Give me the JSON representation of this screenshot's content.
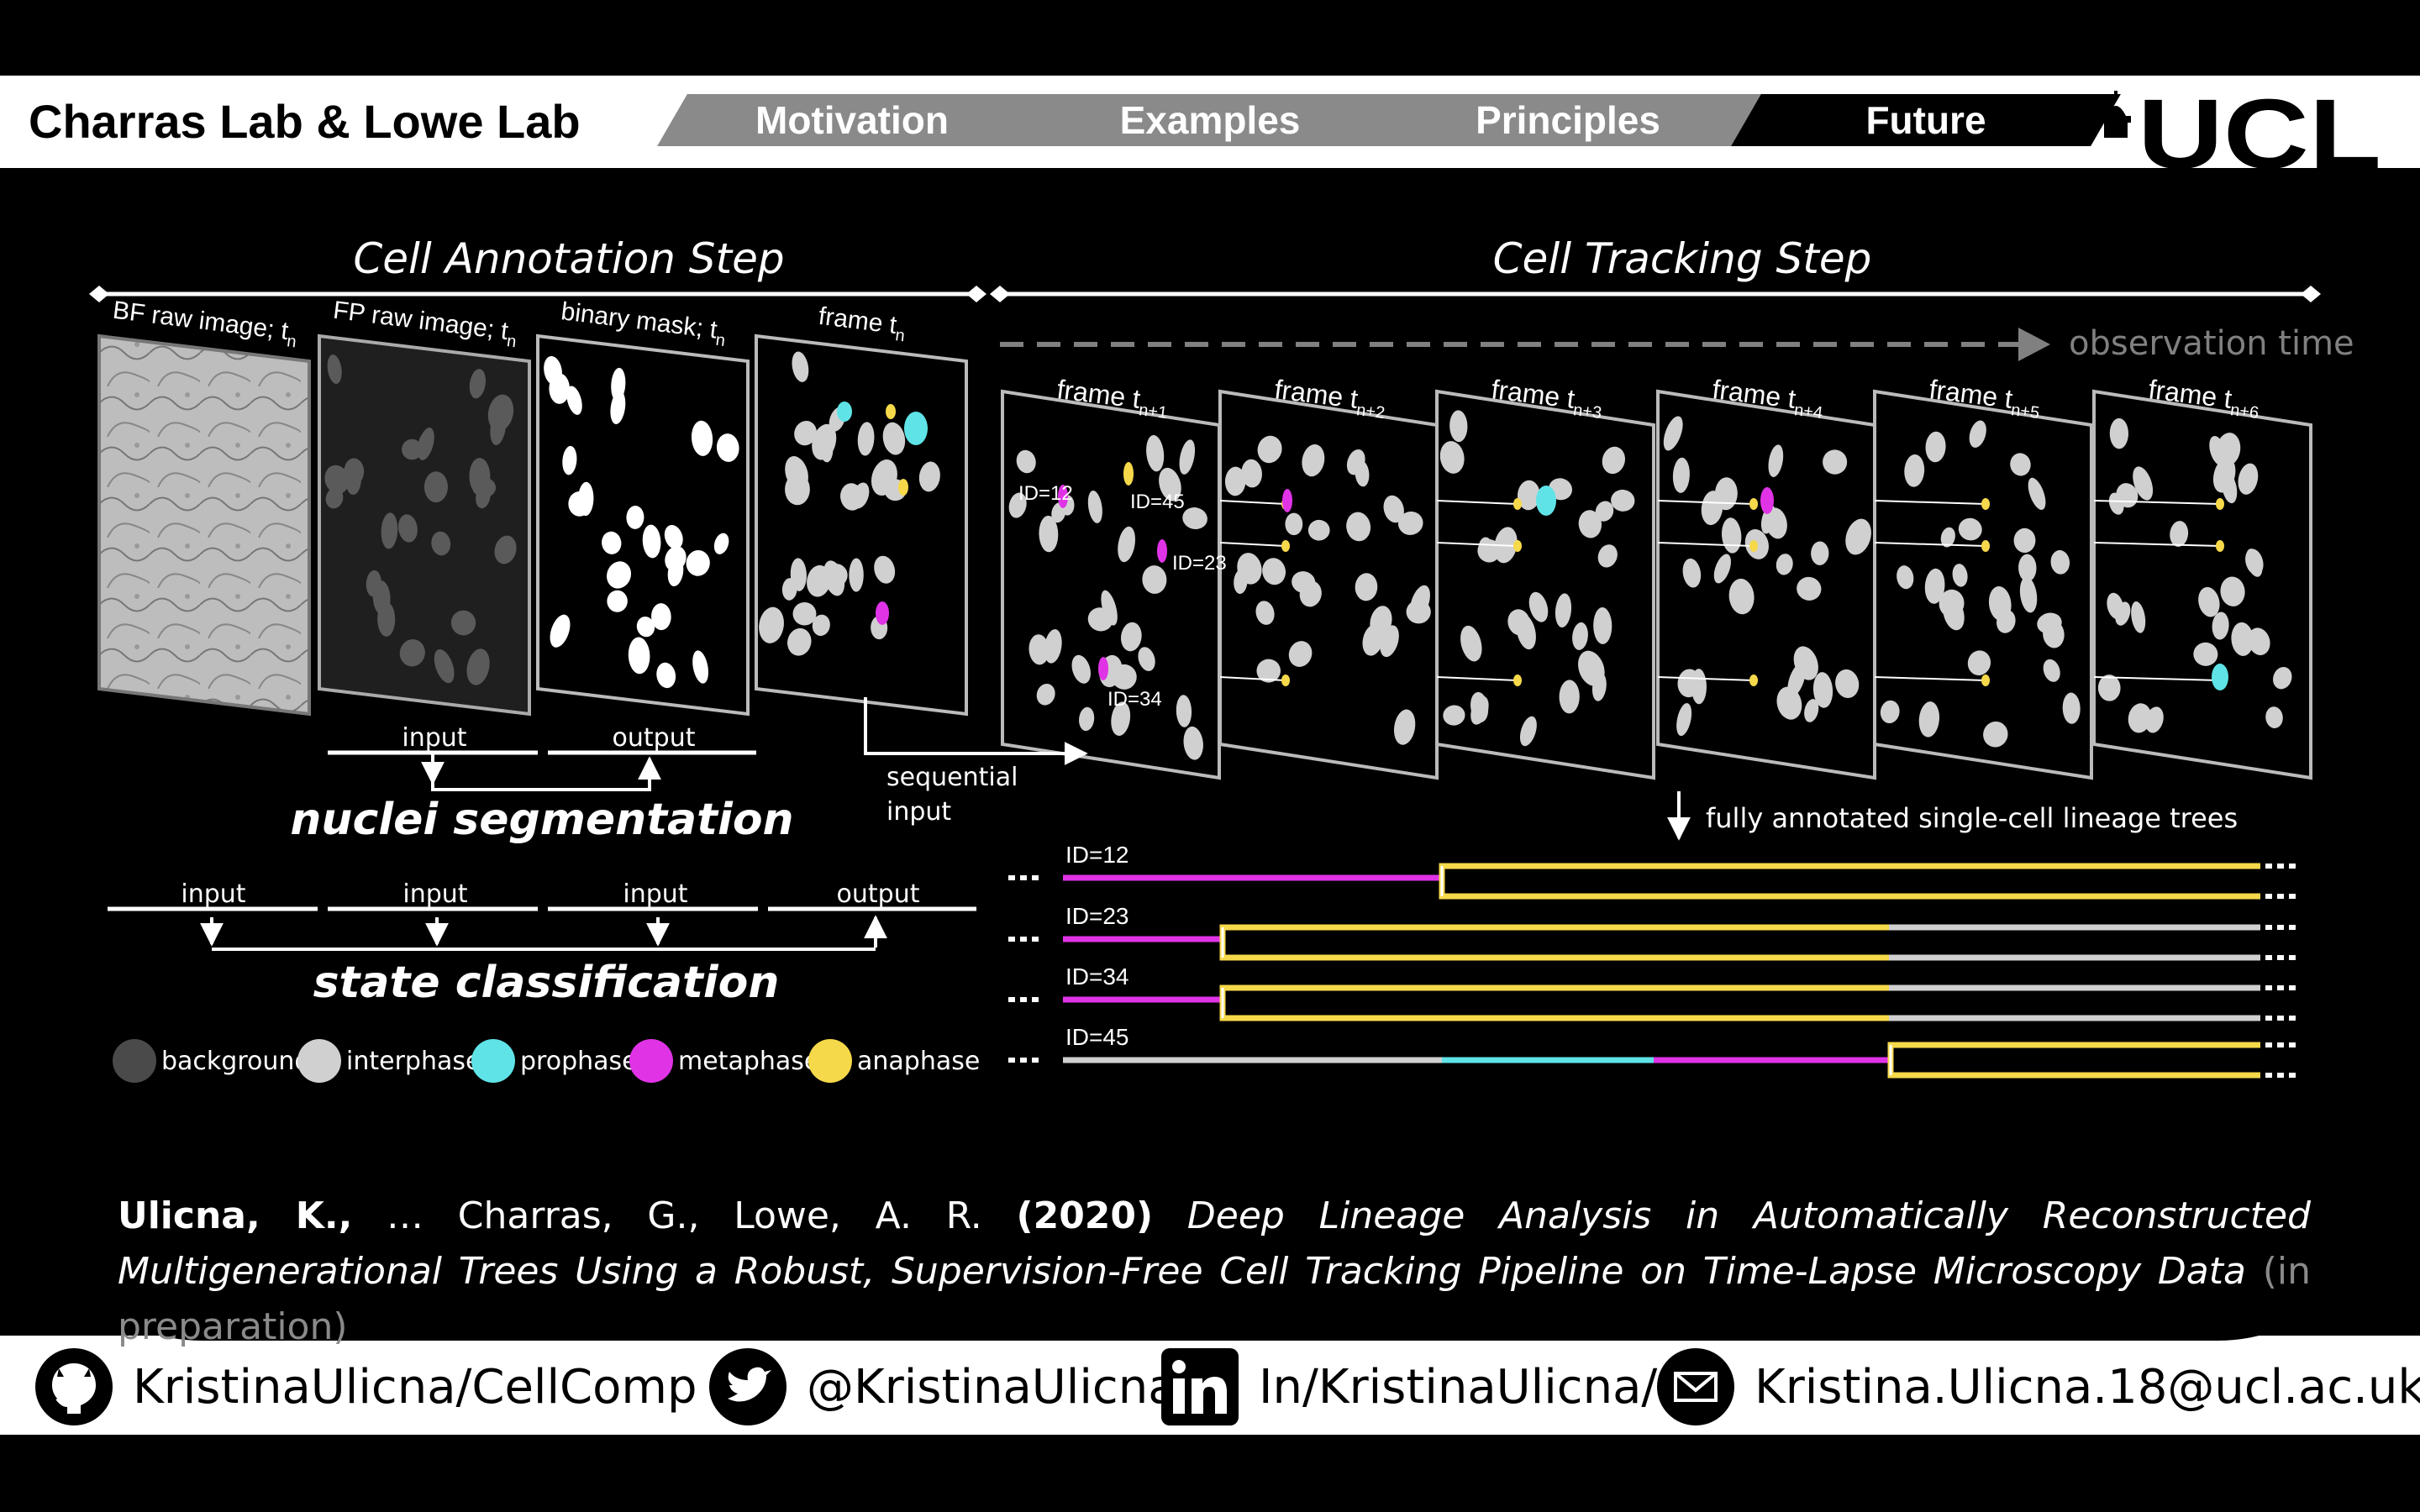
{
  "header": {
    "lab_title": "Charras Lab & Lowe Lab",
    "tabs": [
      {
        "label": "Motivation",
        "active": false
      },
      {
        "label": "Examples",
        "active": false
      },
      {
        "label": "Principles",
        "active": false
      },
      {
        "label": "Future",
        "active": true
      }
    ],
    "logo_text": "UCL"
  },
  "annotation": {
    "title": "Cell Annotation Step",
    "panels": [
      {
        "label": "BF raw image; t",
        "sub": "n"
      },
      {
        "label": "FP raw image; t",
        "sub": "n"
      },
      {
        "label": "binary mask; t",
        "sub": "n"
      },
      {
        "label": "frame t",
        "sub": "n"
      }
    ],
    "seg_input": "input",
    "seg_output": "output",
    "seg_title": "nuclei segmentation",
    "seq_input_line1": "sequential",
    "seq_input_line2": "input",
    "cls_inputs": [
      "input",
      "input",
      "input"
    ],
    "cls_output": "output",
    "cls_title": "state classification",
    "legend": [
      {
        "label": "background",
        "color": "#4a4a4a"
      },
      {
        "label": "interphase",
        "color": "#d0d0d0"
      },
      {
        "label": "prophase",
        "color": "#5fe3e6"
      },
      {
        "label": "metaphase",
        "color": "#e033e6"
      },
      {
        "label": "anaphase",
        "color": "#f6d94a"
      }
    ]
  },
  "tracking": {
    "title": "Cell Tracking Step",
    "observation_time": "observation time",
    "frames": [
      {
        "label": "frame t",
        "sub": "n+1"
      },
      {
        "label": "frame t",
        "sub": "n+2"
      },
      {
        "label": "frame t",
        "sub": "n+3"
      },
      {
        "label": "frame t",
        "sub": "n+4"
      },
      {
        "label": "frame t",
        "sub": "n+5"
      },
      {
        "label": "frame t",
        "sub": "n+6"
      }
    ],
    "frame_ids": [
      "ID=12",
      "ID=45",
      "ID=23",
      "ID=34"
    ],
    "lineage_caption": "fully annotated single-cell lineage trees",
    "lineages": [
      {
        "id": "ID=12"
      },
      {
        "id": "ID=23"
      },
      {
        "id": "ID=34"
      },
      {
        "id": "ID=45"
      }
    ]
  },
  "citation": {
    "authors_bold": "Ulicna, K.,",
    "authors_rest": " … Charras, G., Lowe, A. R. ",
    "year": "(2020)",
    "title": " Deep Lineage Analysis in Automatically Reconstructed Multigenerational Trees Using a Robust, Supervision-Free Cell Tracking Pipeline on Time-Lapse Microscopy Data",
    "note": " (in preparation)"
  },
  "contacts": [
    {
      "icon": "github-icon",
      "text": "KristinaUlicna/CellComp"
    },
    {
      "icon": "twitter-icon",
      "text": "@KristinaUlicna"
    },
    {
      "icon": "linkedin-icon",
      "text": "In/KristinaUlicna/"
    },
    {
      "icon": "mail-icon",
      "text": "Kristina.Ulicna.18@ucl.ac.uk"
    }
  ],
  "colors": {
    "interphase": "#d0d0d0",
    "prophase": "#5fe3e6",
    "metaphase": "#e033e6",
    "anaphase": "#f6d94a",
    "tab_inactive": "#8a8a8a",
    "tab_active": "#000000"
  }
}
